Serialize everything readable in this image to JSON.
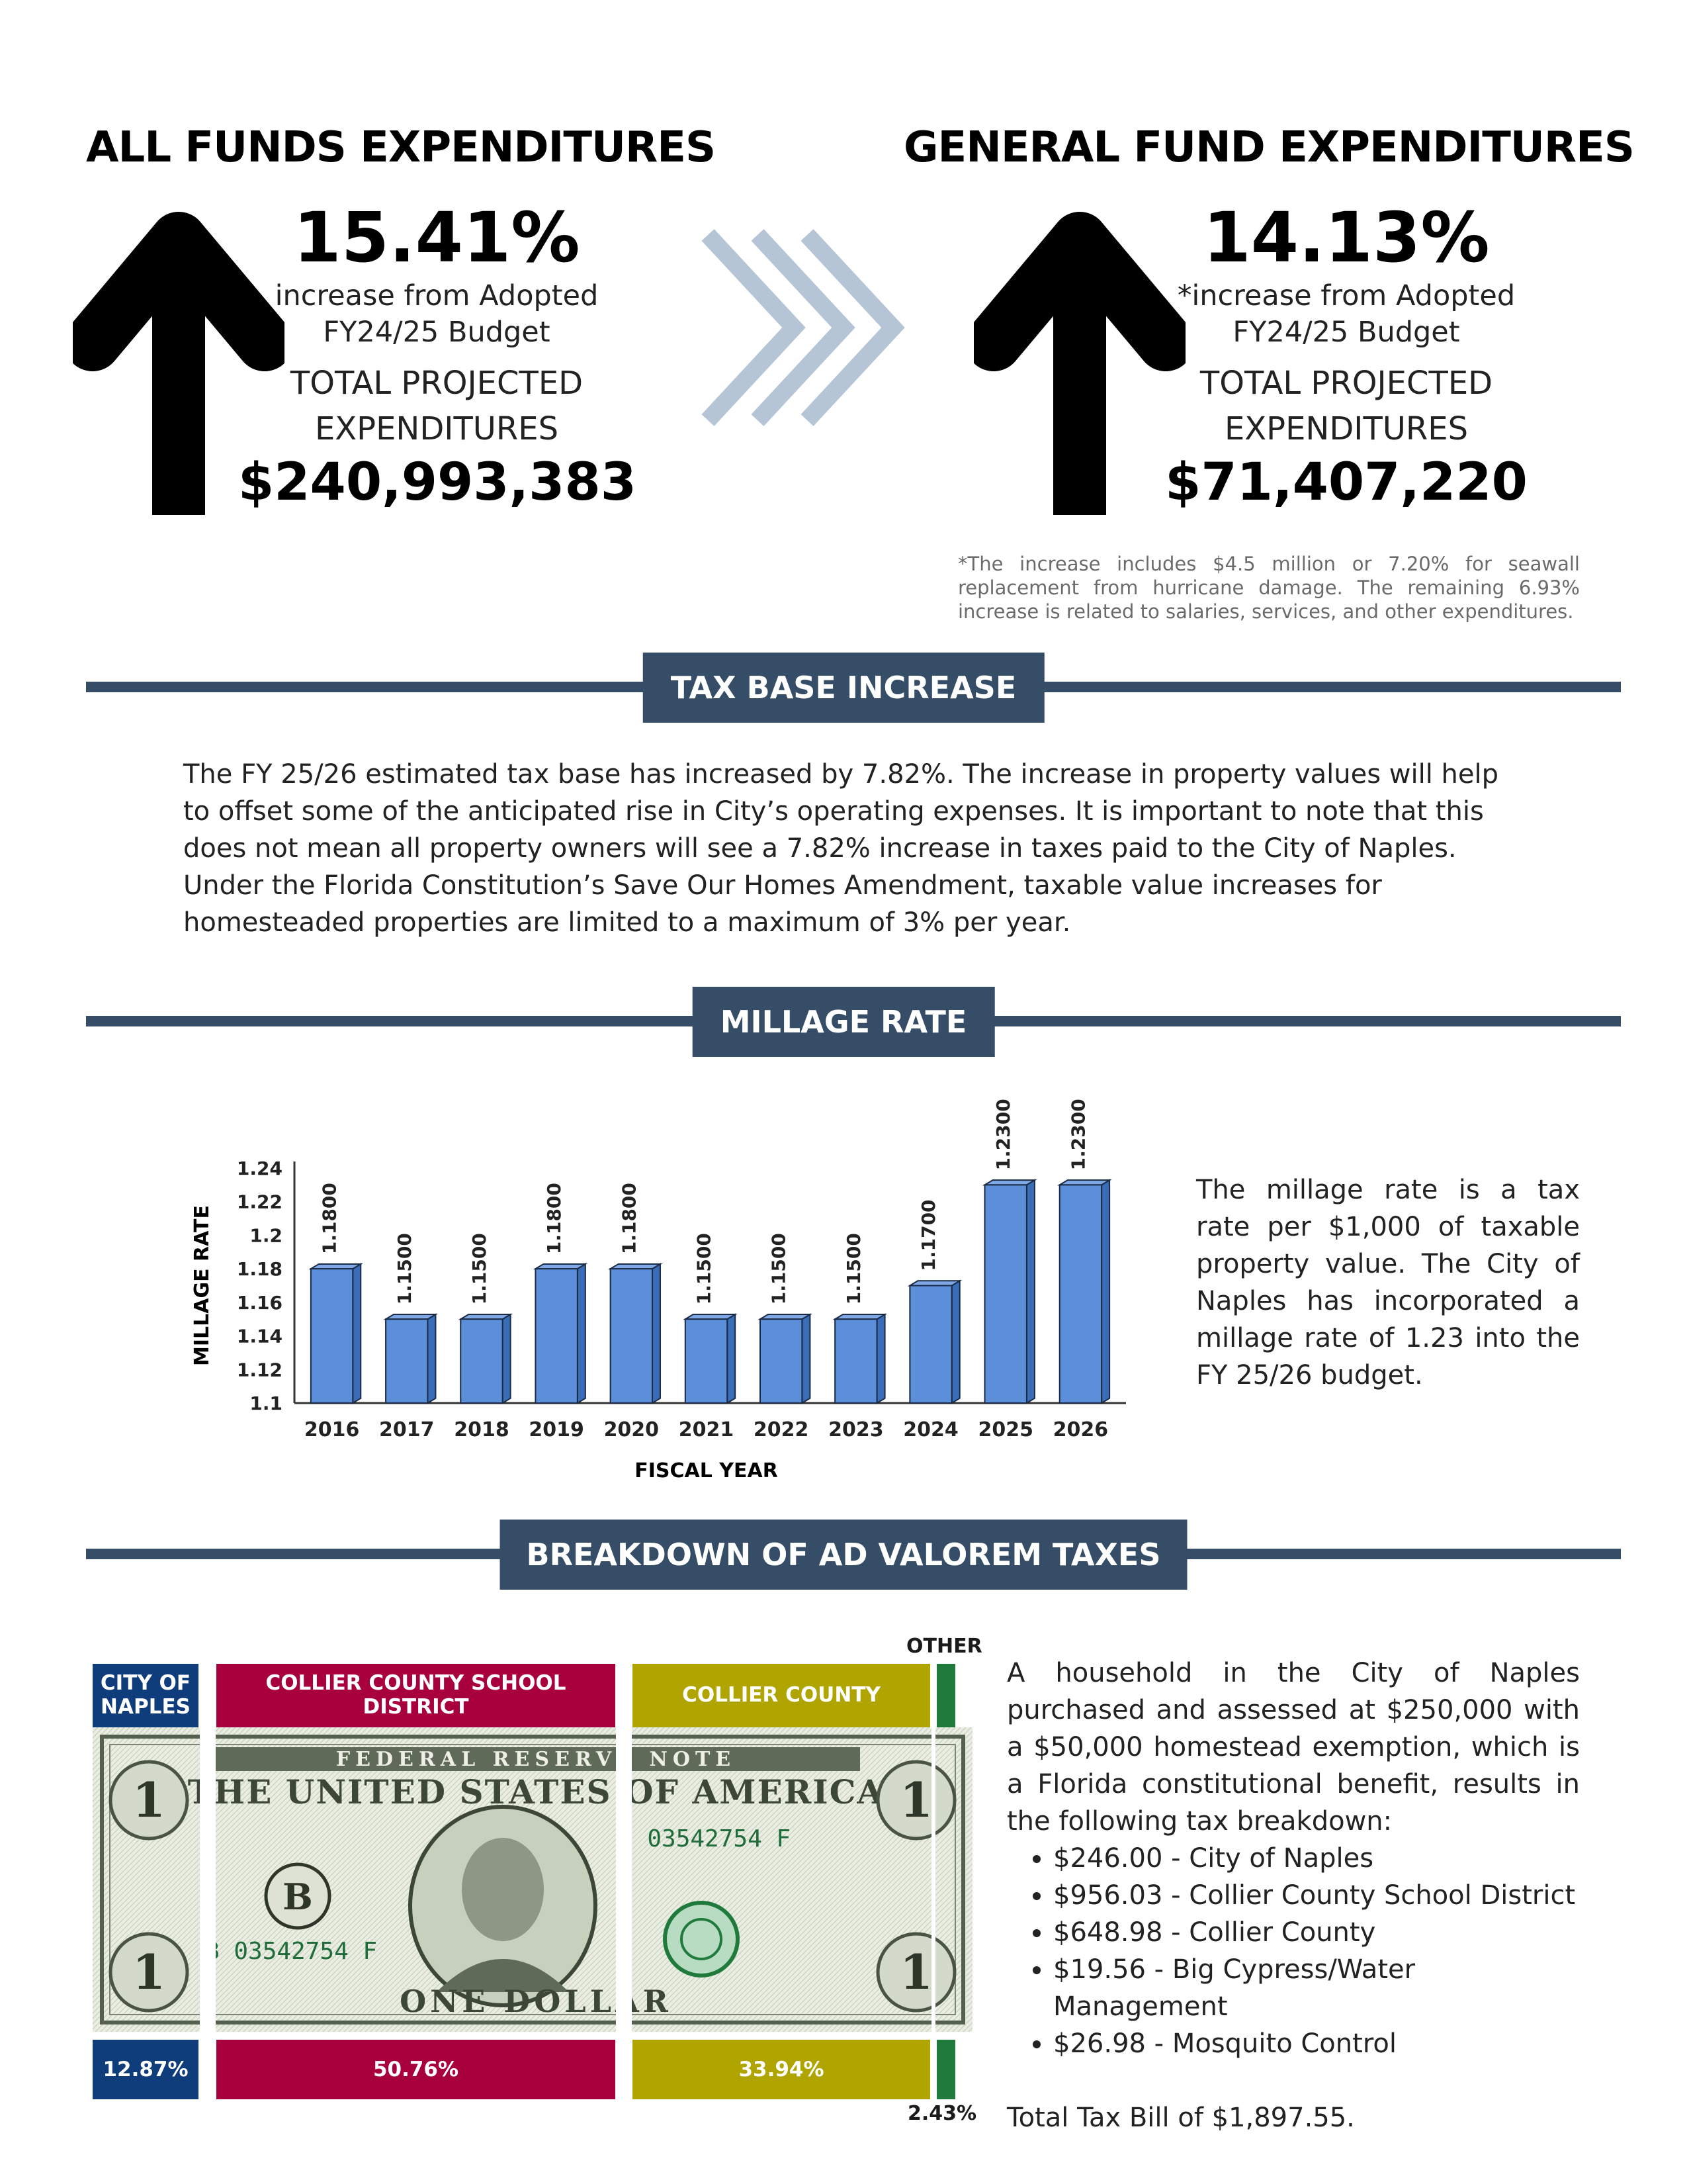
{
  "all_funds": {
    "heading": "ALL FUNDS EXPENDITURES",
    "percent": "15.41%",
    "sub_line1": "increase from Adopted",
    "sub_line2": "FY24/25 Budget",
    "proj_line1": "TOTAL PROJECTED",
    "proj_line2": "EXPENDITURES",
    "amount": "$240,993,383"
  },
  "general_fund": {
    "heading": "GENERAL FUND EXPENDITURES",
    "percent": "14.13%",
    "sub_line1": "*increase from Adopted",
    "sub_line2": "FY24/25 Budget",
    "proj_line1": "TOTAL PROJECTED",
    "proj_line2": "EXPENDITURES",
    "amount": "$71,407,220",
    "footnote": "*The increase includes $4.5 million or 7.20% for seawall replacement from hurricane damage. The remaining 6.93% increase is related to salaries, services, and other expenditures."
  },
  "colors": {
    "banner": "#354d66",
    "bar": "#5b8fd9",
    "bar_dark": "#3a6db8",
    "chevron": "#b6c5d6",
    "city_blue": "#0f3c7a",
    "school_red": "#a8003c",
    "county_olive": "#b0a500",
    "other_green": "#1f7a3c"
  },
  "tax_base": {
    "banner": "TAX BASE INCREASE",
    "paragraph": "The FY 25/26 estimated tax base has increased by 7.82%. The increase in property values will help to offset some of the anticipated rise in City’s operating expenses. It is important to note that this does not mean all property owners will see a 7.82% increase in taxes paid to the City of Naples. Under the Florida Constitution’s Save Our Homes Amendment, taxable value increases for homesteaded properties are limited to a maximum of 3% per year."
  },
  "millage": {
    "banner": "MILLAGE RATE",
    "description": "The millage rate is a tax rate per $1,000 of taxable property value. The City of Naples has incorporated a millage rate of 1.23 into the FY 25/26 budget."
  },
  "chart_data": {
    "type": "bar",
    "categories": [
      "2016",
      "2017",
      "2018",
      "2019",
      "2020",
      "2021",
      "2022",
      "2023",
      "2024",
      "2025",
      "2026"
    ],
    "values": [
      1.18,
      1.15,
      1.15,
      1.18,
      1.18,
      1.15,
      1.15,
      1.15,
      1.17,
      1.23,
      1.23
    ],
    "data_labels": [
      "1.1800",
      "1.1500",
      "1.1500",
      "1.1800",
      "1.1800",
      "1.1500",
      "1.1500",
      "1.1500",
      "1.1700",
      "1.2300",
      "1.2300"
    ],
    "yticks": [
      "1.1",
      "1.12",
      "1.14",
      "1.16",
      "1.18",
      "1.2",
      "1.22",
      "1.24"
    ],
    "ylim": [
      1.1,
      1.24
    ],
    "xlabel": "FISCAL YEAR",
    "ylabel": "MILLAGE RATE",
    "grid": false,
    "legend": "none"
  },
  "breakdown": {
    "banner": "BREAKDOWN OF AD VALOREM TAXES",
    "dollar_image": "one-dollar-bill",
    "segments": [
      {
        "label_line1": "CITY OF",
        "label_line2": "NAPLES",
        "percent": "12.87%"
      },
      {
        "label_line1": "COLLIER COUNTY SCHOOL DISTRICT",
        "label_line2": "",
        "percent": "50.76%"
      },
      {
        "label_line1": "COLLIER COUNTY",
        "label_line2": "",
        "percent": "33.94%"
      },
      {
        "label_line1": "OTHER",
        "label_line2": "",
        "percent": "2.43%"
      }
    ],
    "intro": "A household in the City of Naples purchased and assessed at $250,000 with a $50,000 homestead exemption, which is a Florida constitutional benefit, results in the following tax breakdown:",
    "items": [
      "$246.00 - City of Naples",
      "$956.03 - Collier County School District",
      "$648.98 - Collier County",
      "$19.56 - Big Cypress/Water Management",
      "$26.98 - Mosquito Control"
    ],
    "total": "Total Tax Bill of $1,897.55."
  }
}
